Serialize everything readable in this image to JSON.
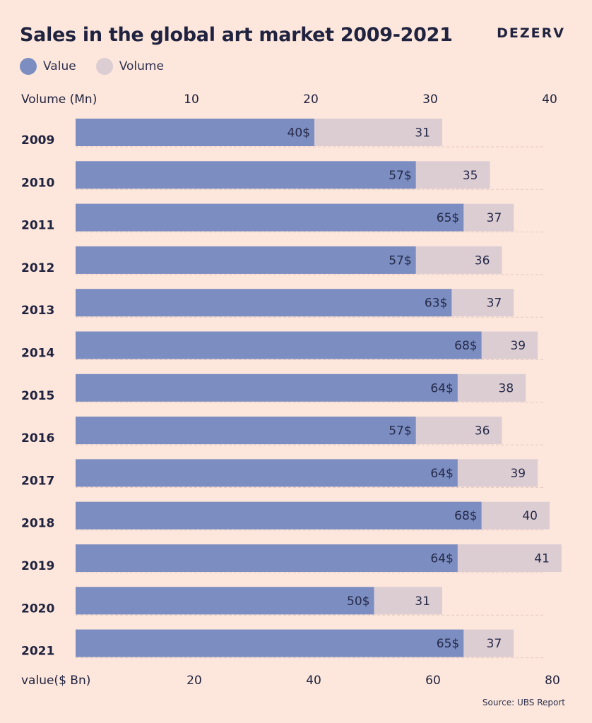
{
  "title": "Sales in the global art market 2009-2021",
  "brand": "DEZERV",
  "source": "Source: UBS Report",
  "legend": [
    {
      "label": "Value",
      "color": "#7b8dc1"
    },
    {
      "label": "Volume",
      "color": "#dccdd3"
    }
  ],
  "chart_data": {
    "type": "bar",
    "orientation": "horizontal",
    "stacked": "overlaid",
    "categories": [
      "2009",
      "2010",
      "2011",
      "2012",
      "2013",
      "2014",
      "2015",
      "2016",
      "2017",
      "2018",
      "2019",
      "2020",
      "2021"
    ],
    "series": [
      {
        "name": "Value",
        "axis": "bottom",
        "unit_suffix": "$",
        "color": "#7b8dc1",
        "values": [
          40,
          57,
          65,
          57,
          63,
          68,
          64,
          57,
          64,
          68,
          64,
          50,
          65
        ]
      },
      {
        "name": "Volume",
        "axis": "top",
        "unit_suffix": "",
        "color": "#dccdd3",
        "values": [
          31,
          35,
          37,
          36,
          37,
          39,
          38,
          36,
          39,
          40,
          41,
          31,
          37
        ]
      }
    ],
    "top_axis": {
      "label": "Volume (Mn)",
      "ticks": [
        10,
        20,
        30,
        40
      ],
      "ylim": [
        0,
        40
      ]
    },
    "bottom_axis": {
      "label": "value($ Bn)",
      "ticks": [
        20,
        40,
        60,
        80
      ],
      "ylim": [
        0,
        80
      ]
    },
    "grid": "dashed row guides"
  }
}
